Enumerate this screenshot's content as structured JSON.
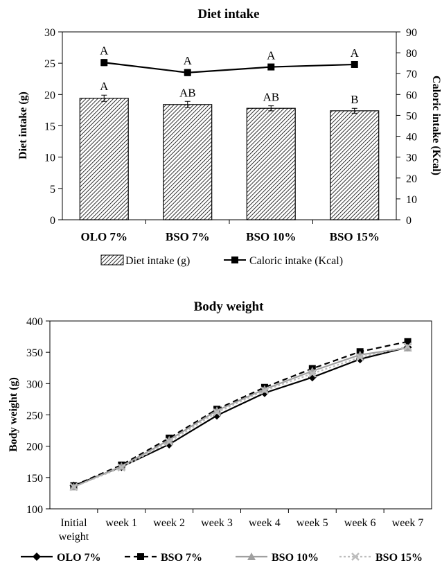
{
  "chart_data": [
    {
      "type": "bar",
      "title": "Diet intake",
      "categories": [
        "OLO 7%",
        "BSO 7%",
        "BSO 10%",
        "BSO 15%"
      ],
      "ylabel": "Diet intake (g)",
      "y2label": "Caloric intake (Kcal)",
      "ylim": [
        0,
        30
      ],
      "y2lim": [
        0,
        90
      ],
      "yticks": [
        "0",
        "5",
        "10",
        "15",
        "20",
        "25",
        "30"
      ],
      "y2ticks": [
        "0",
        "10",
        "20",
        "30",
        "40",
        "50",
        "60",
        "70",
        "80",
        "90"
      ],
      "grid": false,
      "legend_position": "bottom",
      "series": [
        {
          "name": "Diet intake (g)",
          "kind": "bar",
          "axis": "left",
          "values": [
            19.4,
            18.4,
            17.8,
            17.4
          ],
          "errors": [
            0.5,
            0.5,
            0.4,
            0.4
          ],
          "labels": [
            "A",
            "AB",
            "AB",
            "B"
          ]
        },
        {
          "name": "Caloric intake (Kcal)",
          "kind": "line",
          "axis": "right",
          "values": [
            75.3,
            70.5,
            73.2,
            74.4
          ],
          "errors": [
            1.5,
            1.5,
            1.3,
            1.3
          ],
          "labels": [
            "A",
            "A",
            "A",
            "A"
          ]
        }
      ]
    },
    {
      "type": "line",
      "title": "Body weight",
      "categories": [
        [
          "Initial",
          "weight"
        ],
        [
          "week 1"
        ],
        [
          "week 2"
        ],
        [
          "week 3"
        ],
        [
          "week 4"
        ],
        [
          "week 5"
        ],
        [
          "week 6"
        ],
        [
          "week 7"
        ]
      ],
      "ylabel": "Body weight (g)",
      "ylim": [
        100,
        400
      ],
      "yticks": [
        "100",
        "150",
        "200",
        "250",
        "300",
        "350",
        "400"
      ],
      "grid": false,
      "legend_position": "bottom",
      "series": [
        {
          "name": "OLO 7%",
          "color": "#000000",
          "dash": "solid",
          "marker": "diamond",
          "values": [
            137,
            167,
            203,
            249,
            285,
            310,
            339,
            358
          ]
        },
        {
          "name": "BSO 7%",
          "color": "#000000",
          "dash": "dashed",
          "marker": "square",
          "values": [
            137,
            170,
            213,
            259,
            294,
            324,
            351,
            367
          ]
        },
        {
          "name": "BSO 10%",
          "color": "#a0a0a0",
          "dash": "solid",
          "marker": "triangle",
          "values": [
            135,
            168,
            210,
            257,
            291,
            320,
            346,
            357
          ]
        },
        {
          "name": "BSO 15%",
          "color": "#bdbdbd",
          "dash": "dotted",
          "marker": "x",
          "values": [
            135,
            166,
            207,
            254,
            289,
            316,
            342,
            359
          ]
        }
      ]
    }
  ]
}
